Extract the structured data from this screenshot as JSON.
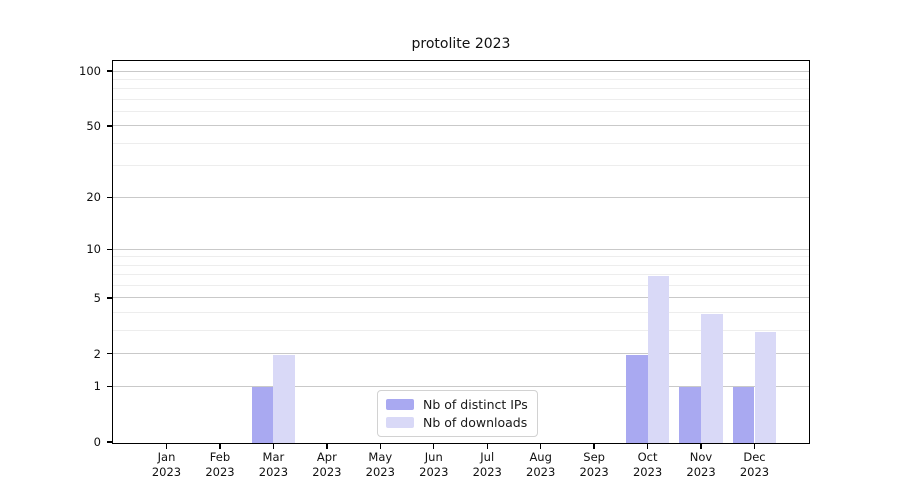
{
  "chart_data": {
    "type": "bar",
    "title": "protolite 2023",
    "scale": "log10(1+x)",
    "categories": [
      "Jan 2023",
      "Feb 2023",
      "Mar 2023",
      "Apr 2023",
      "May 2023",
      "Jun 2023",
      "Jul 2023",
      "Aug 2023",
      "Sep 2023",
      "Oct 2023",
      "Nov 2023",
      "Dec 2023"
    ],
    "series": [
      {
        "name": "Nb of distinct IPs",
        "color": "#a9a9f1",
        "values": [
          0,
          0,
          1,
          0,
          0,
          0,
          0,
          0,
          0,
          2,
          1,
          1
        ]
      },
      {
        "name": "Nb of downloads",
        "color": "#d9d9f7",
        "values": [
          0,
          0,
          2,
          0,
          0,
          0,
          0,
          0,
          0,
          7,
          4,
          3
        ]
      }
    ],
    "y_major_ticks": [
      0,
      1,
      2,
      5,
      10,
      20,
      50,
      100
    ],
    "y_minor_gridlines": [
      3,
      4,
      6,
      7,
      8,
      9,
      30,
      40,
      60,
      70,
      80,
      90
    ],
    "ylim": [
      0,
      113
    ],
    "xlabel": "",
    "ylabel": "",
    "grid": true,
    "legend_position": "inside-bottom-center"
  },
  "colors": {
    "major_grid": "#c9c9c9",
    "minor_grid": "#ededed",
    "axis": "#000000",
    "background": "#ffffff"
  }
}
